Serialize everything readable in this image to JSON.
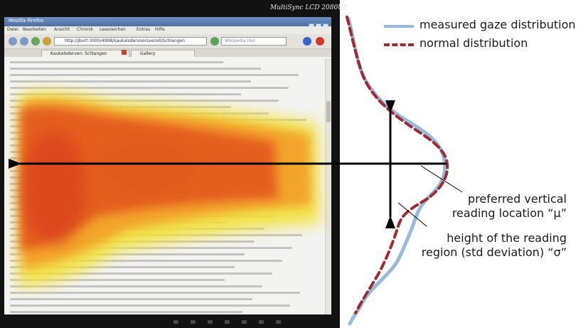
{
  "monitor": {
    "brand": "MultiSync LCD 2080UX"
  },
  "browser": {
    "title": "Mozilla Firefox",
    "menu": [
      "Datei",
      "Bearbeiten",
      "Ansicht",
      "Chronik",
      "Lesezeichen",
      "Extras",
      "Hilfe"
    ],
    "url": "http://jburt:3000/4998/kaukalsdervoorsvezoll/Schlangen",
    "search_placeholder": "Wikipedia (de)",
    "tabs": [
      "Kaukalsderven: Schlangen",
      "Gallery"
    ]
  },
  "legend": {
    "measured_label": "measured gaze distribution",
    "normal_label": "normal distribution",
    "measured_color": "#9ab9de",
    "normal_color": "#9f2a30"
  },
  "annotations": {
    "mu_line1": "preferred vertical",
    "mu_line2": "reading location “μ”",
    "sigma_line1": "height of the reading",
    "sigma_line2": "region (std deviation) “σ”"
  },
  "icons": [
    "back-arrow-icon",
    "forward-arrow-icon",
    "home-icon",
    "refresh-icon",
    "stop-icon",
    "close-tab-icon"
  ]
}
